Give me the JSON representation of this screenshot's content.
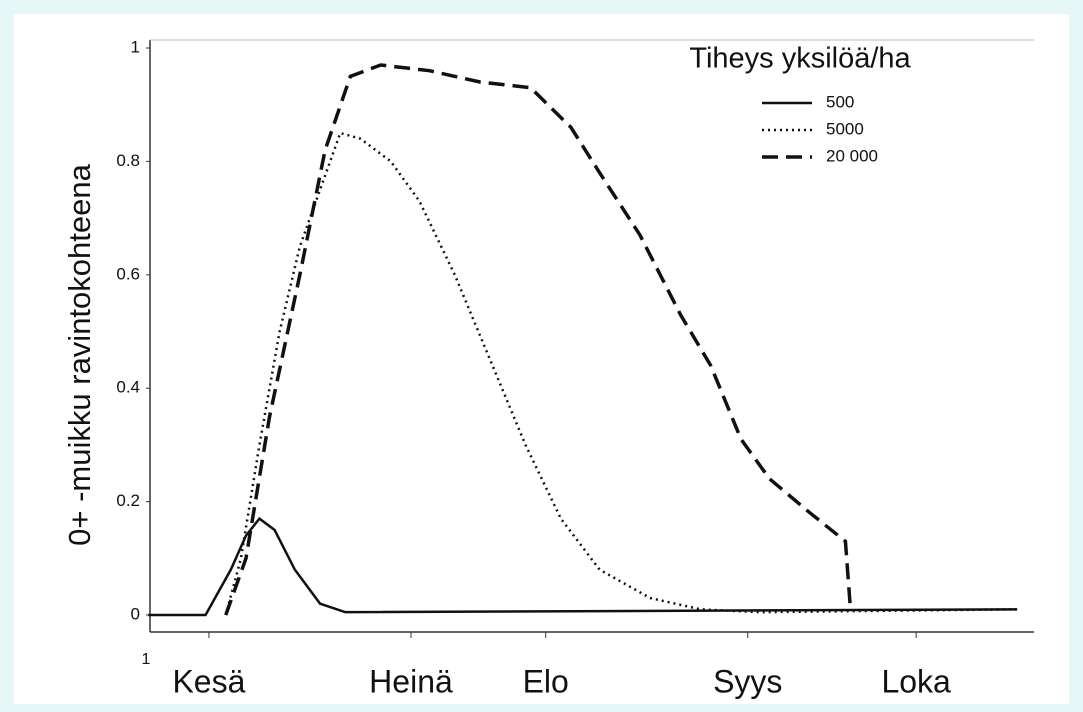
{
  "chart_data": {
    "type": "line",
    "ylabel": "0+ -muikku ravintokohteena",
    "legend_title": "Tiheys yksilöä/ha",
    "annotation": "1",
    "xlim": [
      -0.15,
      5.1
    ],
    "xticks": [
      {
        "value": 0.2,
        "label": "Kesä"
      },
      {
        "value": 1.4,
        "label": "Heinä"
      },
      {
        "value": 2.2,
        "label": "Elo"
      },
      {
        "value": 3.4,
        "label": "Syys"
      },
      {
        "value": 4.4,
        "label": "Loka"
      }
    ],
    "ylim": [
      0,
      1
    ],
    "yticks": [
      0,
      0.2,
      0.4,
      0.6,
      0.8,
      1
    ],
    "series": [
      {
        "name": "500",
        "color": "#111111",
        "style": "solid",
        "x": [
          -0.16,
          0.18,
          0.33,
          0.42,
          0.5,
          0.59,
          0.71,
          0.86,
          1.01,
          5.0
        ],
        "values": [
          0,
          0,
          0.08,
          0.14,
          0.17,
          0.15,
          0.08,
          0.02,
          0.005,
          0.01
        ]
      },
      {
        "name": "5000",
        "color": "#111111",
        "style": "dotted",
        "x": [
          0.3,
          0.39,
          0.5,
          0.62,
          0.74,
          0.86,
          0.98,
          1.1,
          1.28,
          1.45,
          1.66,
          1.87,
          2.08,
          2.29,
          2.52,
          2.82,
          3.12,
          3.47,
          5.0
        ],
        "values": [
          0,
          0.1,
          0.3,
          0.5,
          0.65,
          0.75,
          0.85,
          0.84,
          0.8,
          0.73,
          0.6,
          0.45,
          0.3,
          0.17,
          0.08,
          0.03,
          0.01,
          0.005,
          0.01
        ]
      },
      {
        "name": "20 000",
        "color": "#111111",
        "style": "dashed",
        "x": [
          0.3,
          0.42,
          0.56,
          0.74,
          0.89,
          1.04,
          1.22,
          1.51,
          1.81,
          2.11,
          2.35,
          2.52,
          2.76,
          3.0,
          3.18,
          3.36,
          3.53,
          3.77,
          3.98,
          4.01
        ],
        "values": [
          0,
          0.1,
          0.35,
          0.6,
          0.82,
          0.95,
          0.97,
          0.96,
          0.94,
          0.93,
          0.86,
          0.78,
          0.67,
          0.53,
          0.44,
          0.31,
          0.24,
          0.18,
          0.13,
          0.01
        ]
      }
    ]
  }
}
